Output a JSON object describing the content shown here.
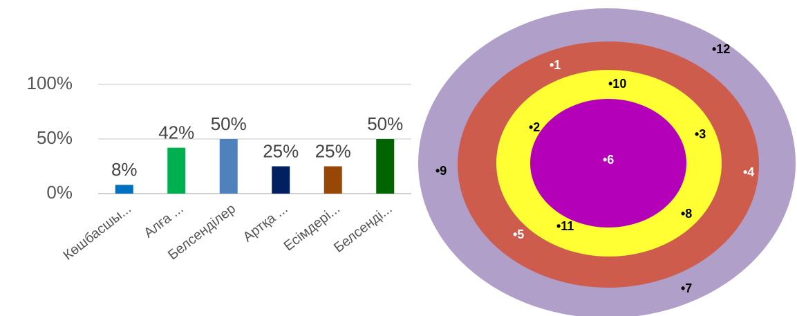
{
  "chart_data": {
    "type": "bar",
    "categories": [
      "Көшбасшы...",
      "Алға ...",
      "Белсенділер",
      "Артқа ...",
      "Есімдері...",
      "Белсенді..."
    ],
    "values": [
      8,
      42,
      50,
      25,
      25,
      50
    ],
    "value_labels": [
      "8%",
      "42%",
      "50%",
      "25%",
      "25%",
      "50%"
    ],
    "colors": [
      "#0070c0",
      "#00b050",
      "#4f81bd",
      "#002060",
      "#974706",
      "#006400"
    ],
    "ylim": [
      0,
      100
    ],
    "yticks": [
      {
        "value": 0,
        "label": "0%"
      },
      {
        "value": 50,
        "label": "50%"
      },
      {
        "value": 100,
        "label": "100%"
      }
    ],
    "grid": true
  },
  "diagram": {
    "points": [
      {
        "label": "•1",
        "color": "#ffffff"
      },
      {
        "label": "•2",
        "color": "#000000"
      },
      {
        "label": "•3",
        "color": "#000000"
      },
      {
        "label": "•4",
        "color": "#ffffff"
      },
      {
        "label": "•5",
        "color": "#ffffff"
      },
      {
        "label": "•6",
        "color": "#ffffff"
      },
      {
        "label": "•7",
        "color": "#000000"
      },
      {
        "label": "•8",
        "color": "#000000"
      },
      {
        "label": "•9",
        "color": "#000000"
      },
      {
        "label": "•10",
        "color": "#000000"
      },
      {
        "label": "•11",
        "color": "#000000"
      },
      {
        "label": "•12",
        "color": "#000000"
      }
    ]
  }
}
